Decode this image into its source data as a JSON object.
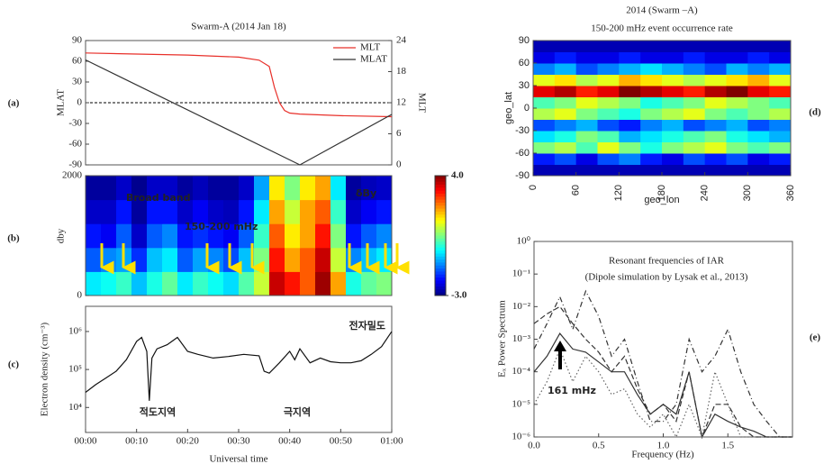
{
  "chart_data": [
    {
      "type": "line",
      "panel_label": "(a)",
      "title": "Swarm-A (2014 Jan 18)",
      "ylabel": "MLAT",
      "y2label": "MLT",
      "xlim": [
        0,
        60
      ],
      "ylim": [
        -90,
        90
      ],
      "yticks": [
        -90,
        -60,
        -30,
        0,
        30,
        60,
        90
      ],
      "y2lim": [
        0,
        24
      ],
      "y2ticks": [
        0,
        6,
        12,
        18,
        24
      ],
      "reference_line": 0,
      "legend": "upper right",
      "series": [
        {
          "name": "MLT",
          "color": "#e8302a",
          "axis": "y2",
          "x": [
            0,
            10,
            20,
            30,
            34,
            36,
            37,
            38,
            39,
            40,
            42,
            50,
            60
          ],
          "values": [
            21.6,
            21.4,
            21.2,
            20.8,
            20.2,
            19,
            15,
            12,
            10.5,
            10,
            9.8,
            9.5,
            9.3
          ]
        },
        {
          "name": "MLAT",
          "color": "#333333",
          "x": [
            0,
            42,
            60
          ],
          "values": [
            62,
            -90,
            -17
          ]
        }
      ]
    },
    {
      "type": "heatmap",
      "panel_label": "(b)",
      "ylabel": "dby",
      "xlim": [
        0,
        60
      ],
      "ylim": [
        0,
        2000
      ],
      "yticks": [
        0,
        2000
      ],
      "zlim": [
        -3,
        4
      ],
      "colormap": "jet",
      "colorbar_ticks": [
        {
          "value": 4,
          "label": "4.0"
        },
        {
          "value": -3,
          "label": "-3.0"
        }
      ],
      "annotations": [
        "Broad band",
        "150-200 mHz",
        "δBy"
      ],
      "z": [
        [
          -0.5,
          -0.3,
          0,
          -0.8,
          -0.2,
          0.3,
          -0.5,
          0,
          -0.3,
          -0.6,
          0.2,
          1,
          3.5,
          3,
          2.5,
          3.8,
          2,
          -0.2,
          0.3,
          0.5
        ],
        [
          -1.5,
          -1.2,
          -1,
          -1.8,
          -0.8,
          -0.5,
          -1.5,
          -1,
          -1.2,
          -1.6,
          -0.8,
          0.5,
          3,
          2,
          2.5,
          3.5,
          1,
          -1.2,
          -0.8,
          -0.5
        ],
        [
          -2,
          -2.2,
          -1.5,
          -2.5,
          -1.5,
          -1.2,
          -2,
          -1.8,
          -2,
          -2.2,
          -1.5,
          0,
          2.5,
          1.5,
          2,
          3,
          0.5,
          -2,
          -1.5,
          -1.2
        ],
        [
          -2.5,
          -2.5,
          -2,
          -2.8,
          -2,
          -2,
          -2.5,
          -2.2,
          -2.5,
          -2.6,
          -2,
          -0.5,
          2,
          1,
          2,
          2.5,
          0,
          -2.5,
          -2.2,
          -2
        ],
        [
          -2.8,
          -2.8,
          -2.5,
          -2.9,
          -2.5,
          -2.5,
          -2.8,
          -2.6,
          -2.8,
          -2.8,
          -2.5,
          -1,
          1.5,
          0.5,
          1.5,
          2,
          -0.5,
          -2.8,
          -2.6,
          -2.5
        ]
      ]
    },
    {
      "type": "line",
      "panel_label": "(c)",
      "ylabel": "Electron density (cm⁻³)",
      "xlabel": "Universal time",
      "log_y": true,
      "xlim": [
        0,
        60
      ],
      "ylim": [
        2200,
        4600000
      ],
      "xticks": [
        {
          "value": 0,
          "label": "00:00"
        },
        {
          "value": 10,
          "label": "00:10"
        },
        {
          "value": 20,
          "label": "00:20"
        },
        {
          "value": 30,
          "label": "00:30"
        },
        {
          "value": 40,
          "label": "00:40"
        },
        {
          "value": 50,
          "label": "00:50"
        },
        {
          "value": 60,
          "label": "01:00"
        }
      ],
      "yticks": [
        {
          "value": 1000000,
          "label": "10⁶"
        },
        {
          "value": 100000,
          "label": "10⁵"
        },
        {
          "value": 10000,
          "label": "10⁴"
        }
      ],
      "annotations": [
        "전자밀도",
        "적도지역",
        "극지역"
      ],
      "series": [
        {
          "color": "#111111",
          "x": [
            0,
            2,
            4,
            6,
            8,
            10,
            11,
            12,
            12.5,
            13,
            14,
            16,
            18,
            20,
            22,
            25,
            28,
            31,
            34,
            35,
            36,
            38,
            40,
            41,
            42,
            44,
            46,
            48,
            50,
            52,
            54,
            56,
            58,
            60
          ],
          "values": [
            25000,
            40000,
            60000,
            90000,
            180000,
            550000,
            700000,
            300000,
            15000,
            200000,
            350000,
            450000,
            700000,
            300000,
            250000,
            200000,
            220000,
            250000,
            230000,
            90000,
            80000,
            150000,
            300000,
            180000,
            350000,
            150000,
            200000,
            160000,
            150000,
            150000,
            170000,
            250000,
            400000,
            1000000
          ]
        }
      ]
    },
    {
      "type": "heatmap",
      "panel_label": "(d)",
      "title": "2014 (Swarm –A)",
      "subtitle": "150-200 mHz event occurrence rate",
      "xlabel": "geo_lon",
      "ylabel": "geo_lat",
      "xlim": [
        0,
        360
      ],
      "ylim": [
        -90,
        90
      ],
      "xticks": [
        0,
        60,
        120,
        180,
        240,
        300,
        360
      ],
      "yticks": [
        -90,
        -60,
        -30,
        0,
        30,
        60,
        90
      ],
      "zlim": [
        0,
        1
      ],
      "colormap": "jet",
      "z": [
        [
          0.05,
          0.05,
          0.05,
          0.05,
          0.05,
          0.05,
          0.05,
          0.05,
          0.05,
          0.05,
          0.05,
          0.05
        ],
        [
          0.15,
          0.2,
          0.1,
          0.2,
          0.25,
          0.15,
          0.1,
          0.2,
          0.15,
          0.2,
          0.1,
          0.15
        ],
        [
          0.5,
          0.55,
          0.45,
          0.6,
          0.5,
          0.4,
          0.5,
          0.55,
          0.6,
          0.5,
          0.45,
          0.5
        ],
        [
          0.35,
          0.4,
          0.5,
          0.45,
          0.3,
          0.35,
          0.4,
          0.45,
          0.5,
          0.4,
          0.35,
          0.3
        ],
        [
          0.2,
          0.25,
          0.3,
          0.2,
          0.15,
          0.25,
          0.3,
          0.2,
          0.25,
          0.3,
          0.2,
          0.25
        ],
        [
          0.55,
          0.6,
          0.5,
          0.45,
          0.4,
          0.5,
          0.55,
          0.6,
          0.5,
          0.45,
          0.5,
          0.55
        ],
        [
          0.45,
          0.5,
          0.6,
          0.55,
          0.5,
          0.4,
          0.45,
          0.5,
          0.6,
          0.55,
          0.5,
          0.45
        ],
        [
          0.9,
          0.95,
          0.85,
          0.9,
          1,
          0.95,
          0.9,
          0.85,
          0.95,
          1,
          0.9,
          0.85
        ],
        [
          0.6,
          0.65,
          0.55,
          0.6,
          0.7,
          0.65,
          0.6,
          0.55,
          0.6,
          0.65,
          0.7,
          0.6
        ],
        [
          0.25,
          0.3,
          0.2,
          0.25,
          0.3,
          0.35,
          0.3,
          0.25,
          0.2,
          0.3,
          0.25,
          0.3
        ],
        [
          0.1,
          0.15,
          0.1,
          0.1,
          0.15,
          0.1,
          0.1,
          0.15,
          0.1,
          0.1,
          0.15,
          0.1
        ],
        [
          0.05,
          0.05,
          0.05,
          0.05,
          0.05,
          0.05,
          0.05,
          0.05,
          0.05,
          0.05,
          0.05,
          0.05
        ]
      ]
    },
    {
      "type": "line",
      "panel_label": "(e)",
      "title": "Resonant frequencies of IAR",
      "subtitle": "(Dipole simulation by Lysak et al., 2013)",
      "xlabel": "Frequency (Hz)",
      "ylabel": "Eₓ Power Spectrum",
      "log_y": true,
      "xlim": [
        0,
        2
      ],
      "ylim": [
        1e-06,
        1
      ],
      "xticks": [
        {
          "value": 0,
          "label": "0.0"
        },
        {
          "value": 0.5,
          "label": "0.5"
        },
        {
          "value": 1,
          "label": "1.0"
        },
        {
          "value": 1.5,
          "label": "1.5"
        }
      ],
      "yticks": [
        {
          "value": 1,
          "label": "10⁰"
        },
        {
          "value": 0.1,
          "label": "10⁻¹"
        },
        {
          "value": 0.01,
          "label": "10⁻²"
        },
        {
          "value": 0.001,
          "label": "10⁻³"
        },
        {
          "value": 0.0001,
          "label": "10⁻⁴"
        },
        {
          "value": 1e-05,
          "label": "10⁻⁵"
        },
        {
          "value": 1e-06,
          "label": "10⁻⁶"
        }
      ],
      "annotations": [
        "161 mHz"
      ],
      "series": [
        {
          "color": "#333333",
          "dash": "solid",
          "x": [
            0,
            0.1,
            0.2,
            0.3,
            0.4,
            0.5,
            0.6,
            0.7,
            0.8,
            0.9,
            1,
            1.1,
            1.2,
            1.3,
            1.4,
            1.5,
            1.6,
            1.7,
            1.8,
            1.9,
            2
          ],
          "values": [
            0.0001,
            0.0003,
            0.0015,
            0.0005,
            0.0004,
            0.0002,
            0.0001,
            0.0001,
            2e-05,
            5e-06,
            1e-05,
            5e-06,
            0.0001,
            1e-06,
            5e-06,
            3e-06,
            2e-06,
            1.5e-06,
            1e-06,
            1e-06,
            1e-06
          ]
        },
        {
          "color": "#333333",
          "dash": "dashed",
          "x": [
            0,
            0.1,
            0.2,
            0.3,
            0.4,
            0.5,
            0.6,
            0.7,
            0.8,
            0.9,
            1,
            1.1,
            1.2,
            1.3,
            1.4,
            1.5,
            1.6,
            1.7,
            1.8,
            1.9,
            2
          ],
          "values": [
            0.003,
            0.006,
            0.01,
            0.003,
            0.001,
            0.0004,
            0.0001,
            0.0003,
            3e-05,
            5e-06,
            1e-05,
            3e-06,
            0.0001,
            1e-06,
            1e-05,
            1e-05,
            2e-06,
            1e-06,
            1e-06,
            1e-06,
            1e-06
          ]
        },
        {
          "color": "#333333",
          "dash": "dashdot",
          "x": [
            0,
            0.1,
            0.2,
            0.3,
            0.4,
            0.5,
            0.6,
            0.7,
            0.8,
            0.9,
            1,
            1.1,
            1.2,
            1.3,
            1.4,
            1.5,
            1.6,
            1.7,
            1.8,
            1.9,
            2
          ],
          "values": [
            0.0005,
            0.003,
            0.02,
            0.002,
            0.03,
            0.005,
            0.0003,
            0.001,
            5e-05,
            3e-06,
            3e-06,
            1e-05,
            0.001,
            0.0001,
            0.0003,
            0.002,
            0.0001,
            1e-05,
            3e-06,
            1e-06,
            1e-06
          ]
        },
        {
          "color": "#666666",
          "dash": "dotted",
          "x": [
            0,
            0.1,
            0.2,
            0.3,
            0.4,
            0.5,
            0.6,
            0.7,
            0.8,
            0.9,
            1,
            1.1,
            1.2,
            1.3,
            1.4,
            1.5,
            1.6,
            1.7,
            1.8,
            1.9,
            2
          ],
          "values": [
            1e-05,
            5e-05,
            0.0005,
            5e-05,
            0.0003,
            0.0001,
            2e-05,
            3e-05,
            5e-06,
            2e-06,
            5e-06,
            1e-06,
            1e-05,
            1e-06,
            0.0001,
            1e-05,
            1e-06,
            1e-06,
            1e-06,
            1e-06,
            1e-06
          ]
        }
      ]
    }
  ]
}
